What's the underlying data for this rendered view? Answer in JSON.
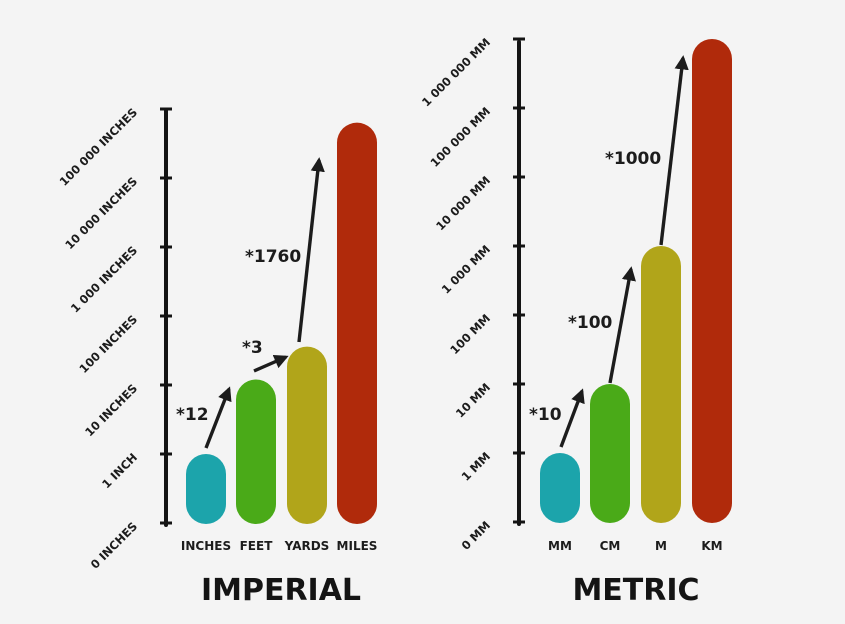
{
  "chart_data": [
    {
      "type": "bar",
      "title": "IMPERIAL",
      "scale": "log",
      "unit": "inches",
      "axis_ticks": [
        "0 INCHES",
        "1 INCH",
        "10 INCHES",
        "100 INCHES",
        "1 000 INCHES",
        "10 000 INCHES",
        "100 000 INCHES"
      ],
      "ylim": [
        0.1,
        100000
      ],
      "categories": [
        "INCHES",
        "FEET",
        "YARDS",
        "MILES"
      ],
      "values": [
        1,
        12,
        36,
        63360
      ],
      "colors": [
        "#1ca4ab",
        "#4aaa18",
        "#b1a51a",
        "#b02a0b"
      ],
      "factors": [
        "*12",
        "*3",
        "*1760"
      ],
      "grid": false,
      "legend": "none"
    },
    {
      "type": "bar",
      "title": "METRIC",
      "scale": "log",
      "unit": "mm",
      "axis_ticks": [
        "0 MM",
        "1 MM",
        "10 MM",
        "100 MM",
        "1 000 MM",
        "10 000 MM",
        "100 000 MM",
        "1 000 000 MM"
      ],
      "ylim": [
        0.1,
        1000000
      ],
      "categories": [
        "MM",
        "CM",
        "M",
        "KM"
      ],
      "values": [
        1,
        10,
        1000,
        1000000
      ],
      "colors": [
        "#1ca4ab",
        "#4aaa18",
        "#b1a51a",
        "#b02a0b"
      ],
      "factors": [
        "*10",
        "*100",
        "*1000"
      ],
      "grid": false,
      "legend": "none"
    }
  ]
}
